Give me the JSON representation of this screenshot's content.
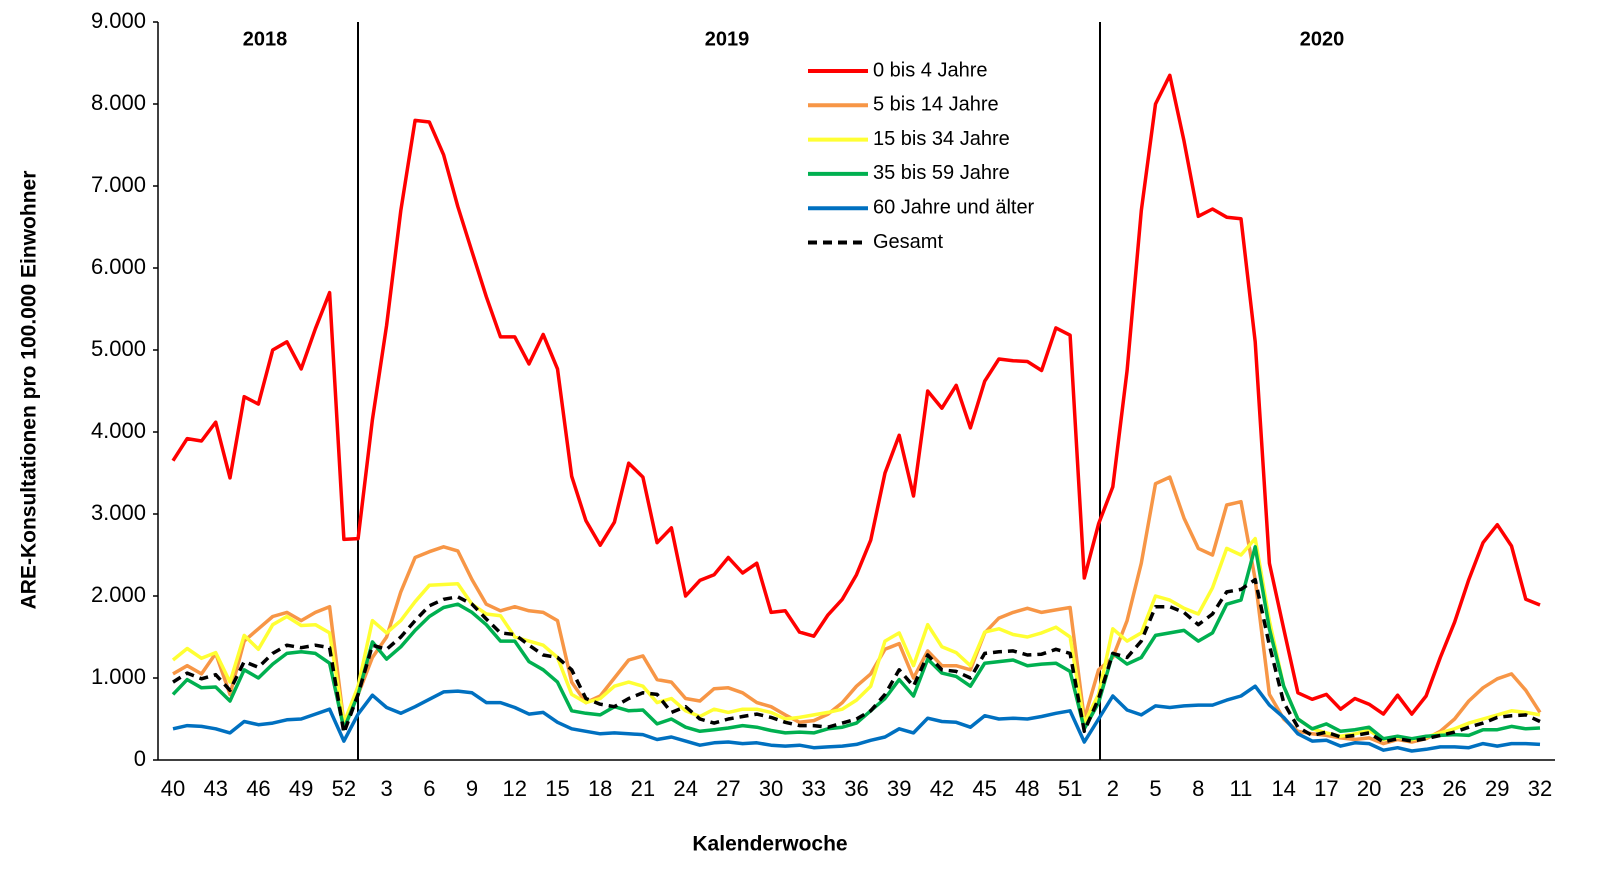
{
  "chart_data": {
    "type": "line",
    "xlabel": "Kalenderwoche",
    "ylabel": "ARE-Konsultationen pro 100.000 Einwohner",
    "annotations": [
      "2018",
      "2019",
      "2020"
    ],
    "categories": [
      "40",
      null,
      null,
      "43",
      null,
      null,
      "46",
      null,
      null,
      "49",
      null,
      null,
      "52",
      null,
      null,
      "3",
      null,
      null,
      "6",
      null,
      null,
      "9",
      null,
      null,
      "12",
      null,
      null,
      "15",
      null,
      null,
      "18",
      null,
      null,
      "21",
      null,
      null,
      "24",
      null,
      null,
      "27",
      null,
      null,
      "30",
      null,
      null,
      "33",
      null,
      null,
      "36",
      null,
      null,
      "39",
      null,
      null,
      "42",
      null,
      null,
      "45",
      null,
      null,
      "48",
      null,
      null,
      "51",
      null,
      null,
      "2",
      null,
      null,
      "5",
      null,
      null,
      "8",
      null,
      null,
      "11",
      null,
      null,
      "14",
      null,
      null,
      "17",
      null,
      null,
      "20",
      null,
      null,
      "23",
      null,
      null,
      "26",
      null,
      null,
      "29",
      null,
      null,
      "32"
    ],
    "ylim": [
      0,
      9000
    ],
    "yticks": [
      0,
      {
        "value": 1000,
        "label": "1.000"
      },
      {
        "value": 2000,
        "label": "2.000"
      },
      {
        "value": 3000,
        "label": "3.000"
      },
      {
        "value": 4000,
        "label": "4.000"
      },
      {
        "value": 5000,
        "label": "5.000"
      },
      {
        "value": 6000,
        "label": "6.000"
      },
      {
        "value": 7000,
        "label": "7.000"
      },
      {
        "value": 8000,
        "label": "8.000"
      },
      {
        "value": 9000,
        "label": "9.000"
      }
    ],
    "grid": false,
    "legend": "top",
    "series": [
      {
        "name": "0 bis 4 Jahre",
        "color": "#ff0000",
        "dashed": false,
        "values": [
          3650,
          3920,
          3890,
          4120,
          3440,
          4430,
          4340,
          5000,
          5100,
          4770,
          5260,
          5700,
          2690,
          2700,
          4150,
          5300,
          6700,
          7800,
          7780,
          7380,
          6750,
          6200,
          5650,
          5160,
          5160,
          4830,
          5190,
          4770,
          3460,
          2920,
          2620,
          2900,
          3620,
          3450,
          2650,
          2830,
          2000,
          2190,
          2260,
          2470,
          2280,
          2400,
          1800,
          1820,
          1560,
          1510,
          1770,
          1960,
          2260,
          2680,
          3500,
          3960,
          3220,
          4500,
          4290,
          4570,
          4050,
          4620,
          4890,
          4870,
          4860,
          4750,
          5270,
          5180,
          2220,
          2880,
          3330,
          4750,
          6700,
          8000,
          8350,
          7550,
          6630,
          6720,
          6620,
          6600,
          5100,
          2400,
          1600,
          820,
          740,
          800,
          620,
          750,
          680,
          560,
          790,
          560,
          780,
          1250,
          1680,
          2200,
          2650,
          2870,
          2610,
          1960,
          1890
        ]
      },
      {
        "name": "5 bis 14 Jahre",
        "color": "#f79646",
        "dashed": false,
        "values": [
          1050,
          1150,
          1050,
          1300,
          800,
          1450,
          1600,
          1750,
          1800,
          1700,
          1800,
          1870,
          450,
          800,
          1250,
          1500,
          2050,
          2470,
          2540,
          2600,
          2550,
          2200,
          1900,
          1820,
          1870,
          1820,
          1800,
          1700,
          950,
          700,
          780,
          1000,
          1220,
          1270,
          980,
          950,
          750,
          720,
          870,
          880,
          820,
          700,
          650,
          550,
          460,
          480,
          560,
          700,
          900,
          1050,
          1350,
          1420,
          1000,
          1330,
          1150,
          1150,
          1100,
          1550,
          1730,
          1800,
          1850,
          1800,
          1830,
          1860,
          500,
          1100,
          1250,
          1700,
          2400,
          3370,
          3450,
          2950,
          2580,
          2500,
          3110,
          3150,
          2200,
          800,
          500,
          350,
          320,
          300,
          270,
          250,
          270,
          200,
          250,
          220,
          260,
          350,
          500,
          720,
          880,
          990,
          1050,
          850,
          580
        ]
      },
      {
        "name": "15 bis 34 Jahre",
        "color": "#ffff33",
        "dashed": false,
        "values": [
          1220,
          1360,
          1240,
          1310,
          950,
          1520,
          1350,
          1650,
          1750,
          1640,
          1650,
          1550,
          450,
          900,
          1700,
          1550,
          1700,
          1930,
          2130,
          2140,
          2150,
          1900,
          1780,
          1760,
          1500,
          1450,
          1400,
          1250,
          800,
          700,
          750,
          900,
          950,
          900,
          700,
          750,
          600,
          530,
          620,
          580,
          620,
          620,
          580,
          500,
          520,
          550,
          580,
          620,
          730,
          900,
          1450,
          1550,
          1150,
          1650,
          1380,
          1310,
          1150,
          1560,
          1600,
          1530,
          1500,
          1550,
          1620,
          1500,
          450,
          800,
          1600,
          1450,
          1550,
          2000,
          1950,
          1850,
          1780,
          2100,
          2580,
          2500,
          2700,
          1700,
          900,
          500,
          380,
          330,
          290,
          320,
          360,
          250,
          280,
          250,
          280,
          330,
          380,
          450,
          500,
          550,
          600,
          580,
          550
        ]
      },
      {
        "name": "35 bis 59 Jahre",
        "color": "#00b050",
        "dashed": false,
        "values": [
          800,
          980,
          880,
          890,
          720,
          1100,
          1000,
          1170,
          1300,
          1320,
          1300,
          1180,
          380,
          800,
          1440,
          1230,
          1380,
          1580,
          1750,
          1860,
          1900,
          1800,
          1650,
          1450,
          1450,
          1200,
          1100,
          950,
          600,
          570,
          550,
          650,
          600,
          610,
          440,
          500,
          400,
          350,
          370,
          390,
          420,
          400,
          360,
          330,
          340,
          330,
          380,
          400,
          450,
          600,
          750,
          980,
          780,
          1230,
          1060,
          1020,
          900,
          1180,
          1200,
          1220,
          1150,
          1170,
          1180,
          1080,
          380,
          700,
          1300,
          1170,
          1250,
          1520,
          1550,
          1580,
          1450,
          1550,
          1900,
          1950,
          2600,
          1600,
          900,
          500,
          380,
          440,
          350,
          370,
          400,
          260,
          290,
          260,
          290,
          300,
          310,
          300,
          370,
          370,
          410,
          380,
          390
        ]
      },
      {
        "name": "60 Jahre und älter",
        "color": "#0070c0",
        "dashed": false,
        "values": [
          380,
          420,
          410,
          380,
          330,
          470,
          430,
          450,
          490,
          500,
          560,
          620,
          230,
          560,
          790,
          640,
          570,
          650,
          740,
          830,
          840,
          820,
          700,
          700,
          640,
          560,
          580,
          460,
          380,
          350,
          320,
          330,
          320,
          310,
          250,
          280,
          230,
          180,
          210,
          220,
          200,
          210,
          180,
          170,
          180,
          150,
          160,
          170,
          190,
          240,
          280,
          380,
          330,
          510,
          470,
          460,
          400,
          540,
          500,
          510,
          500,
          530,
          570,
          600,
          220,
          500,
          780,
          610,
          550,
          660,
          640,
          660,
          670,
          670,
          730,
          780,
          900,
          670,
          520,
          320,
          230,
          240,
          170,
          210,
          200,
          120,
          150,
          110,
          130,
          160,
          160,
          150,
          200,
          170,
          200,
          200,
          190
        ]
      },
      {
        "name": "Gesamt",
        "color": "#000000",
        "dashed": true,
        "values": [
          950,
          1060,
          990,
          1040,
          850,
          1200,
          1130,
          1300,
          1400,
          1370,
          1400,
          1370,
          330,
          800,
          1400,
          1350,
          1500,
          1700,
          1880,
          1960,
          1990,
          1900,
          1720,
          1550,
          1530,
          1400,
          1280,
          1250,
          1100,
          750,
          680,
          650,
          750,
          820,
          800,
          580,
          650,
          500,
          450,
          500,
          530,
          560,
          520,
          460,
          420,
          420,
          400,
          450,
          500,
          600,
          800,
          1100,
          900,
          1280,
          1100,
          1080,
          1000,
          1300,
          1320,
          1330,
          1280,
          1290,
          1350,
          1300,
          350,
          750,
          1300,
          1250,
          1450,
          1870,
          1870,
          1800,
          1650,
          1780,
          2050,
          2080,
          2200,
          1400,
          700,
          400,
          300,
          340,
          280,
          300,
          330,
          220,
          260,
          230,
          260,
          300,
          340,
          400,
          450,
          520,
          540,
          550,
          470
        ]
      }
    ]
  }
}
